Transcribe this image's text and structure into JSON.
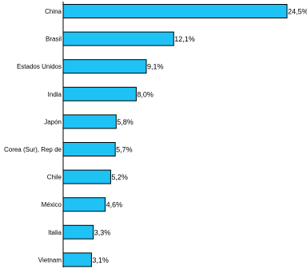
{
  "chart_data": {
    "type": "bar",
    "orientation": "horizontal",
    "title": "",
    "xlabel": "",
    "ylabel": "",
    "categories": [
      "China",
      "Brasil",
      "Estados Unidos",
      "India",
      "Japón",
      "Corea (Sur), Rep de",
      "Chile",
      "México",
      "Italia",
      "Vietnam"
    ],
    "values": [
      24.5,
      12.1,
      9.1,
      8.0,
      5.8,
      5.7,
      5.2,
      4.6,
      3.3,
      3.1
    ],
    "value_labels": [
      "24,5%",
      "12,1%",
      "9,1%",
      "8,0%",
      "5,8%",
      "5,7%",
      "5,2%",
      "4,6%",
      "3,3%",
      "3,1%"
    ],
    "xlim": [
      0,
      24.5
    ],
    "grid": false,
    "legend": "none",
    "colors": {
      "bar_fill": "#1EC2F5",
      "bar_stroke": "#000000",
      "axis": "#000000"
    }
  }
}
